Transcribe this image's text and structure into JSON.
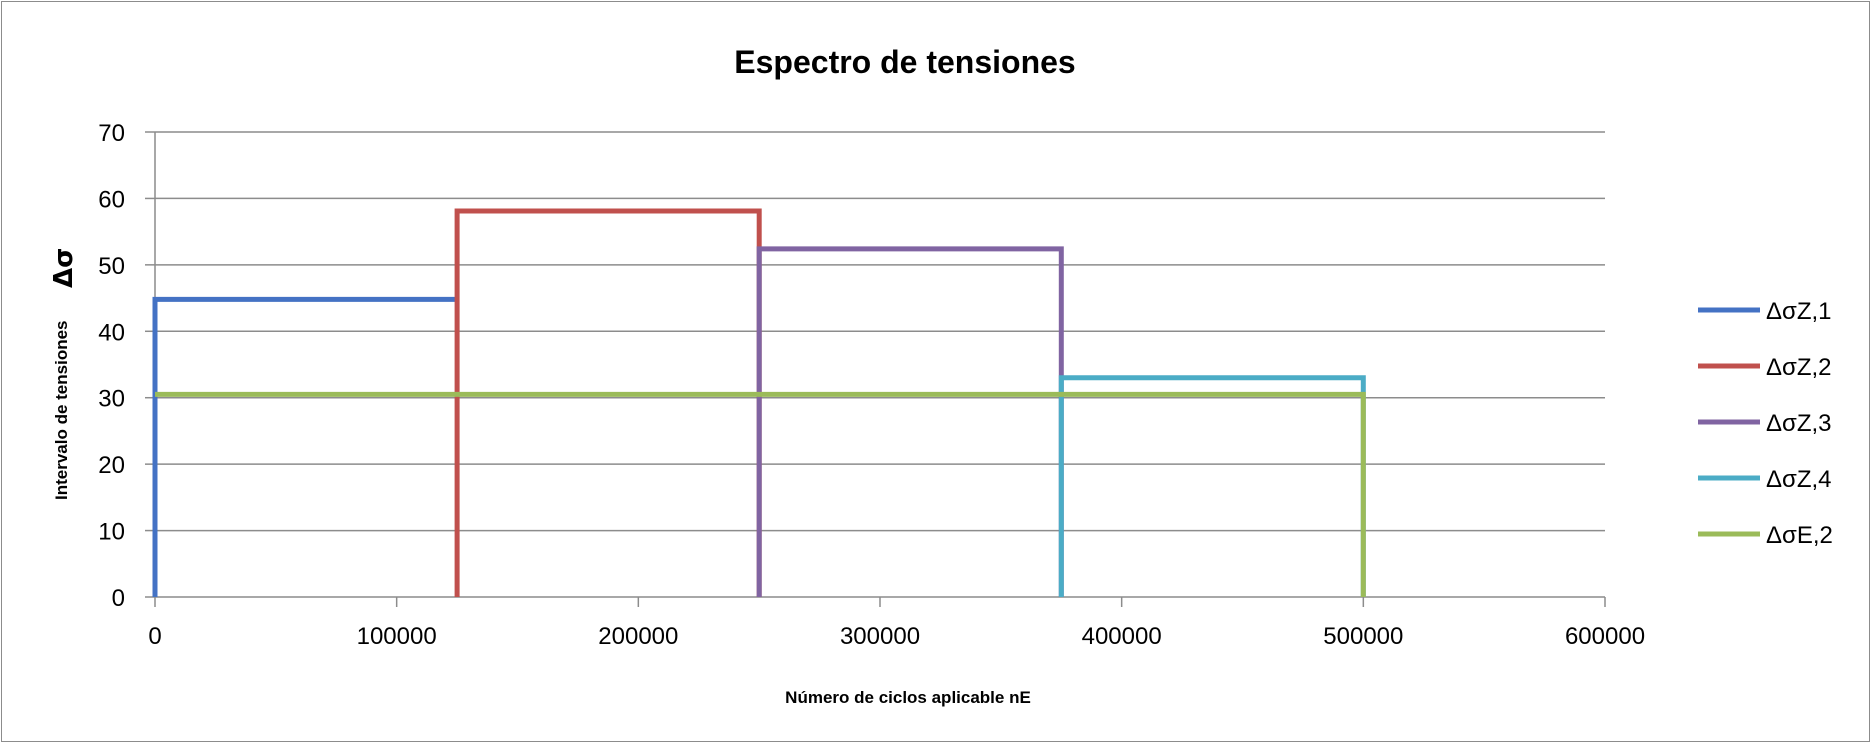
{
  "chart_data": {
    "type": "line",
    "title": "Espectro de tensiones",
    "xlabel": "Número de ciclos aplicable nE",
    "ylabel": "Intervalo de tensiones",
    "ylabel_symbol": "Δσ",
    "xlim": [
      0,
      600000
    ],
    "ylim": [
      0,
      70
    ],
    "xticks": [
      0,
      100000,
      200000,
      300000,
      400000,
      500000,
      600000
    ],
    "yticks": [
      0,
      10,
      20,
      30,
      40,
      50,
      60,
      70
    ],
    "grid": "horizontal",
    "legend_position": "right",
    "series": [
      {
        "name": "ΔσZ,1",
        "color": "#4472C4",
        "x": [
          0,
          0,
          125000
        ],
        "y": [
          0,
          44.8,
          44.8
        ]
      },
      {
        "name": "ΔσZ,2",
        "color": "#C0504D",
        "x": [
          125000,
          125000,
          250000,
          250000
        ],
        "y": [
          0,
          58.1,
          58.1,
          0
        ]
      },
      {
        "name": "ΔσZ,3",
        "color": "#8064A2",
        "x": [
          250000,
          250000,
          375000,
          375000
        ],
        "y": [
          0,
          52.4,
          52.4,
          0
        ]
      },
      {
        "name": "ΔσZ,4",
        "color": "#4BACC6",
        "x": [
          375000,
          375000,
          500000,
          500000
        ],
        "y": [
          0,
          33.0,
          33.0,
          0
        ]
      },
      {
        "name": "ΔσE,2",
        "color": "#9BBB59",
        "x": [
          0,
          500000,
          500000
        ],
        "y": [
          30.5,
          30.5,
          0
        ]
      }
    ]
  }
}
